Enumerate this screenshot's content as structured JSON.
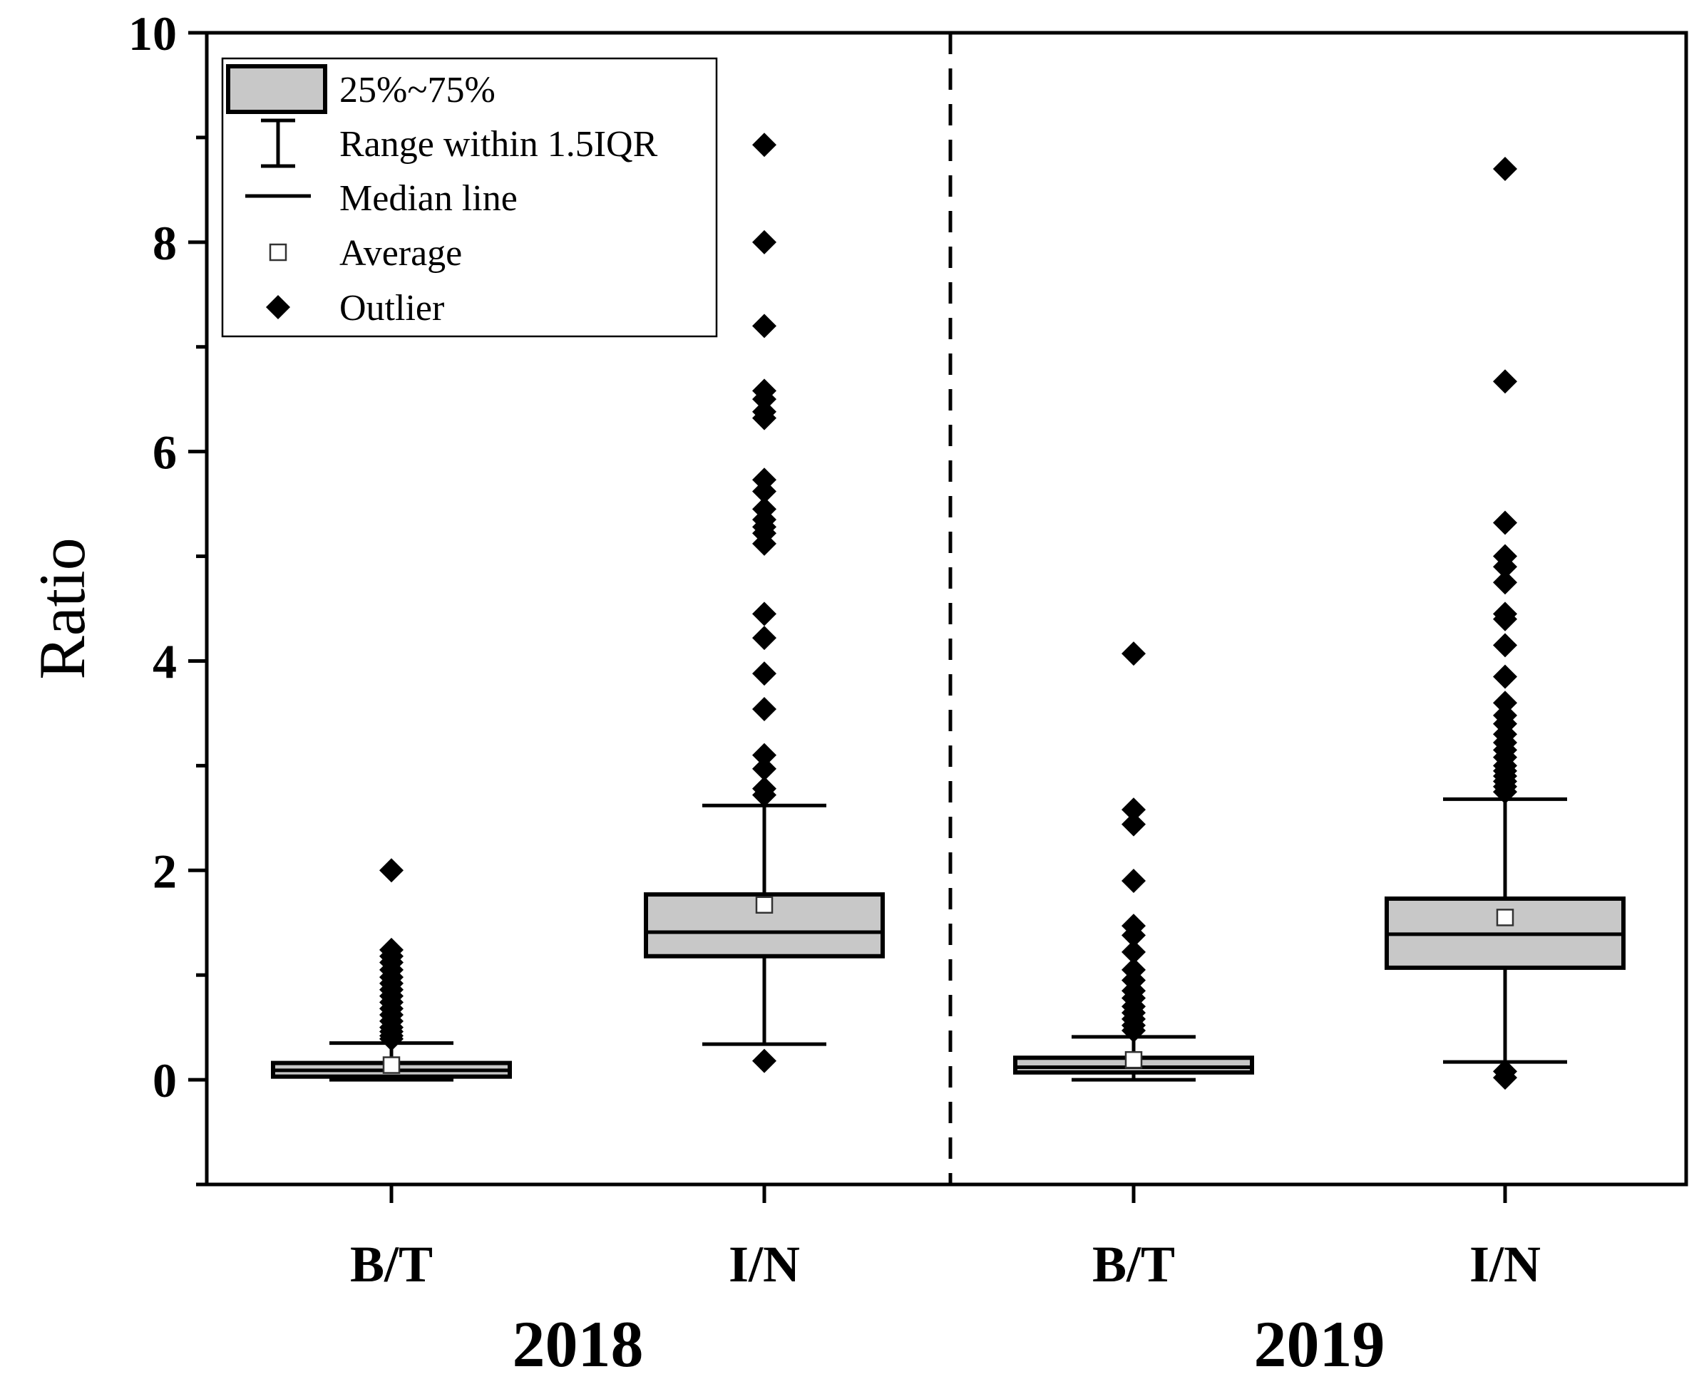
{
  "chart_data": {
    "type": "box",
    "ylabel": "Ratio",
    "ylim": [
      -1,
      10
    ],
    "yticks": [
      0,
      2,
      4,
      6,
      8,
      10
    ],
    "yticks_minor": [
      -1,
      1,
      3,
      5,
      7,
      9
    ],
    "groups": [
      {
        "label": "2018",
        "boxes": [
          {
            "category": "B/T",
            "q1": 0.03,
            "median": 0.09,
            "q3": 0.16,
            "whisker_low": 0.0,
            "whisker_high": 0.35,
            "mean": 0.14,
            "outliers": [
              2.0,
              1.24,
              1.18,
              1.12,
              1.05,
              0.98,
              0.92,
              0.86,
              0.8,
              0.74,
              0.68,
              0.62,
              0.56,
              0.5,
              0.46,
              0.42,
              0.39
            ]
          },
          {
            "category": "I/N",
            "q1": 1.18,
            "median": 1.41,
            "q3": 1.77,
            "whisker_low": 0.34,
            "whisker_high": 2.62,
            "mean": 1.67,
            "outliers": [
              8.93,
              8.0,
              7.2,
              6.58,
              6.5,
              6.38,
              6.32,
              5.73,
              5.62,
              5.45,
              5.35,
              5.28,
              5.22,
              5.12,
              4.45,
              4.22,
              3.88,
              3.54,
              3.1,
              2.97,
              2.78,
              2.72,
              0.18
            ]
          }
        ]
      },
      {
        "label": "2019",
        "boxes": [
          {
            "category": "B/T",
            "q1": 0.07,
            "median": 0.12,
            "q3": 0.21,
            "whisker_low": 0.0,
            "whisker_high": 0.41,
            "mean": 0.19,
            "outliers": [
              4.07,
              2.58,
              2.44,
              1.9,
              1.47,
              1.38,
              1.22,
              1.05,
              0.95,
              0.85,
              0.78,
              0.7,
              0.64,
              0.58,
              0.52,
              0.47
            ]
          },
          {
            "category": "I/N",
            "q1": 1.07,
            "median": 1.39,
            "q3": 1.73,
            "whisker_low": 0.17,
            "whisker_high": 2.68,
            "mean": 1.55,
            "outliers": [
              8.7,
              6.67,
              5.32,
              5.0,
              4.9,
              4.75,
              4.45,
              4.4,
              4.15,
              3.85,
              3.6,
              3.48,
              3.4,
              3.3,
              3.22,
              3.15,
              3.08,
              3.0,
              2.95,
              2.9,
              2.85,
              2.8,
              2.75,
              0.08,
              0.02
            ]
          }
        ]
      }
    ],
    "legend": [
      {
        "key": "box",
        "label": "25%~75%"
      },
      {
        "key": "whisker",
        "label": "Range within 1.5IQR"
      },
      {
        "key": "median",
        "label": "Median line"
      },
      {
        "key": "mean",
        "label": "Average"
      },
      {
        "key": "outlier",
        "label": "Outlier"
      }
    ],
    "colors": {
      "box_fill": "#c8c8c8",
      "line": "#000000",
      "background": "#ffffff"
    }
  }
}
